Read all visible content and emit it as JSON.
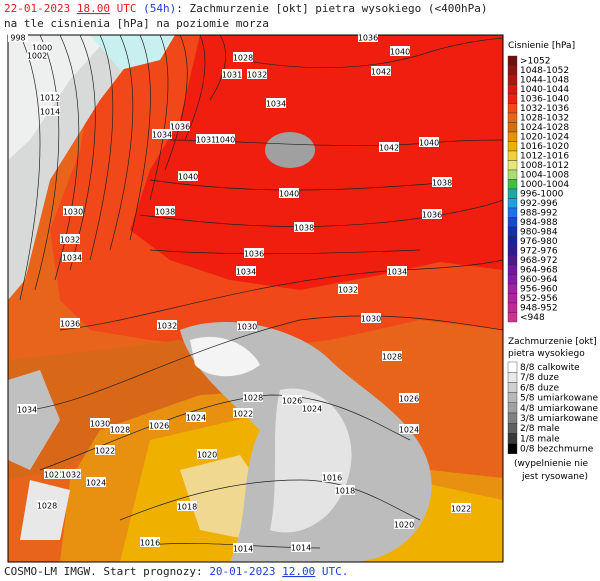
{
  "header": {
    "date": "22-01-2023",
    "hour": "18.00",
    "utc": "UTC",
    "lead": "(54h)",
    "title": ": Zachmurzenie [okt] pietra wysokiego (<400hPa)",
    "subtitle": "na tle cisnienia [hPa] na poziomie morza"
  },
  "isobar_labels": [
    "998",
    "1000",
    "1002",
    "1036",
    "1040",
    "1042",
    "1028",
    "1031",
    "1032",
    "1012",
    "1014",
    "1034",
    "1036",
    "1034",
    "1031",
    "1040",
    "1042",
    "1040",
    "1040",
    "1038",
    "1040",
    "1038",
    "1036",
    "1038",
    "1030",
    "1032",
    "1034",
    "1036",
    "1034",
    "1034",
    "1032",
    "1036",
    "1032",
    "1030",
    "1030",
    "1028",
    "1034",
    "1030",
    "1028",
    "1026",
    "1024",
    "1028",
    "1026",
    "1024",
    "1022",
    "1026",
    "1024",
    "1022",
    "1020",
    "1021",
    "1032",
    "1024",
    "1016",
    "1018",
    "1028",
    "1018",
    "1016",
    "1014",
    "1014",
    "1020",
    "1022"
  ],
  "pressure_legend": {
    "title": "Cisnienie [hPa]",
    "classes": [
      {
        "label": ">1052",
        "color": "#6e1010"
      },
      {
        "label": "1048-1052",
        "color": "#8c1410"
      },
      {
        "label": "1044-1048",
        "color": "#b01410"
      },
      {
        "label": "1040-1044",
        "color": "#d81a0e"
      },
      {
        "label": "1036-1040",
        "color": "#f01e0e"
      },
      {
        "label": "1032-1036",
        "color": "#f04a18"
      },
      {
        "label": "1028-1032",
        "color": "#e8641a"
      },
      {
        "label": "1024-1028",
        "color": "#d07010"
      },
      {
        "label": "1020-1024",
        "color": "#e89010"
      },
      {
        "label": "1016-1020",
        "color": "#f0b000"
      },
      {
        "label": "1012-1016",
        "color": "#f0d040"
      },
      {
        "label": "1008-1012",
        "color": "#e8e878"
      },
      {
        "label": "1004-1008",
        "color": "#a8e070"
      },
      {
        "label": "1000-1004",
        "color": "#40c040"
      },
      {
        "label": "996-1000",
        "color": "#20a8a0"
      },
      {
        "label": "992-996",
        "color": "#20a0e0"
      },
      {
        "label": "988-992",
        "color": "#2070e8"
      },
      {
        "label": "984-988",
        "color": "#1848d0"
      },
      {
        "label": "980-984",
        "color": "#1030b0"
      },
      {
        "label": "976-980",
        "color": "#1820a0"
      },
      {
        "label": "972-976",
        "color": "#301890"
      },
      {
        "label": "968-972",
        "color": "#501890"
      },
      {
        "label": "964-968",
        "color": "#7018a0"
      },
      {
        "label": "960-964",
        "color": "#8818a8"
      },
      {
        "label": "956-960",
        "color": "#a020a8"
      },
      {
        "label": "952-956",
        "color": "#b020a0"
      },
      {
        "label": "948-952",
        "color": "#c02898"
      },
      {
        "label": "<948",
        "color": "#d03090"
      }
    ]
  },
  "cloud_legend": {
    "title": "Zachmurzenie [okt]",
    "subtitle": "pietra wysokiego",
    "classes": [
      {
        "label": "8/8 calkowite",
        "color": "#ffffff"
      },
      {
        "label": "7/8 duze",
        "color": "#e8e8e8"
      },
      {
        "label": "6/8 duze",
        "color": "#d0d0d0"
      },
      {
        "label": "5/8 umiarkowane",
        "color": "#b8b8b8"
      },
      {
        "label": "4/8 umiarkowane",
        "color": "#a0a0a0"
      },
      {
        "label": "3/8 umiarkowane",
        "color": "#808080"
      },
      {
        "label": "2/8 male",
        "color": "#606060"
      },
      {
        "label": "1/8 male",
        "color": "#383838"
      },
      {
        "label": "0/8 bezchmurne",
        "color": "#000000"
      }
    ],
    "note_line1": "(wypelnienie nie",
    "note_line2": "jest rysowane)"
  },
  "footer": {
    "prefix": "COSMO-LM IMGW. Start prognozy: ",
    "date": "20-01-2023",
    "hour": "12.00",
    "utc": "UTC."
  }
}
